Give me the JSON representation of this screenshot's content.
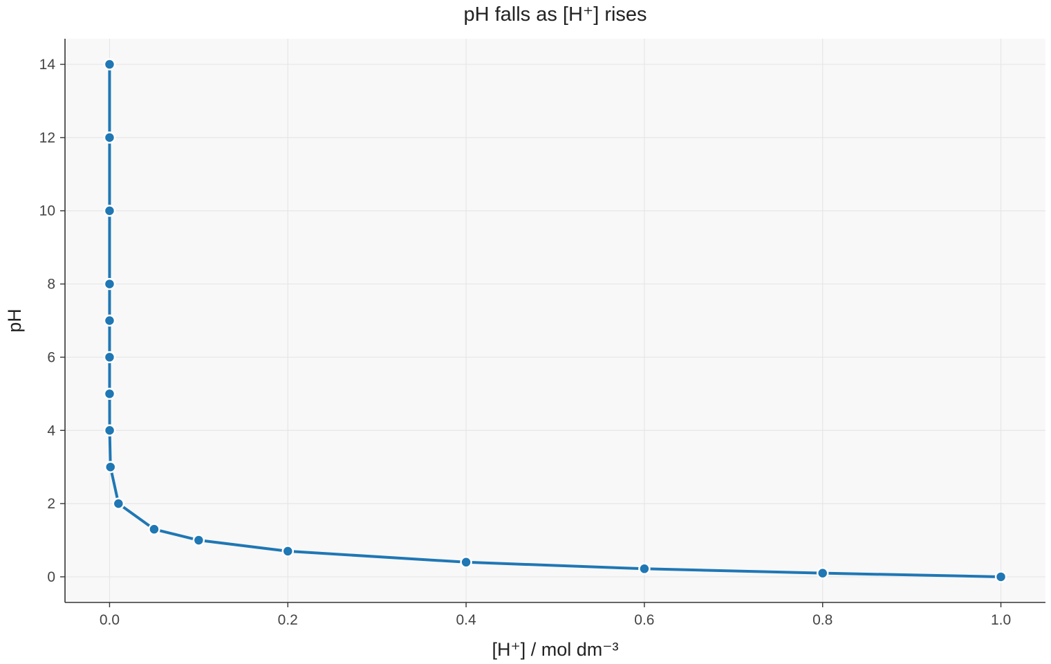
{
  "chart_data": {
    "type": "line",
    "title": "pH falls as [H⁺] rises",
    "xlabel": "[H⁺] / mol dm⁻³",
    "ylabel": "pH",
    "xlim": [
      -0.05,
      1.05
    ],
    "ylim": [
      -0.7,
      14.7
    ],
    "xticks": [
      0.0,
      0.2,
      0.4,
      0.6,
      0.8,
      1.0
    ],
    "xtick_labels": [
      "0.0",
      "0.2",
      "0.4",
      "0.6",
      "0.8",
      "1.0"
    ],
    "yticks": [
      0,
      2,
      4,
      6,
      8,
      10,
      12,
      14
    ],
    "ytick_labels": [
      "0",
      "2",
      "4",
      "6",
      "8",
      "10",
      "12",
      "14"
    ],
    "grid": true,
    "legend": "none",
    "colors": {
      "series": "#1f77b4",
      "plot_background": "#f8f8f8"
    },
    "series": [
      {
        "x": [
          1e-14,
          1e-12,
          1e-10,
          1e-08,
          1e-07,
          1e-06,
          1e-05,
          0.0001,
          0.001,
          0.01,
          0.05,
          0.1,
          0.2,
          0.4,
          0.6,
          0.8,
          1.0
        ],
        "y": [
          14,
          12,
          10,
          8,
          7,
          6,
          5,
          4,
          3,
          2,
          1.3,
          1.0,
          0.7,
          0.4,
          0.22,
          0.1,
          0.0
        ]
      }
    ]
  }
}
